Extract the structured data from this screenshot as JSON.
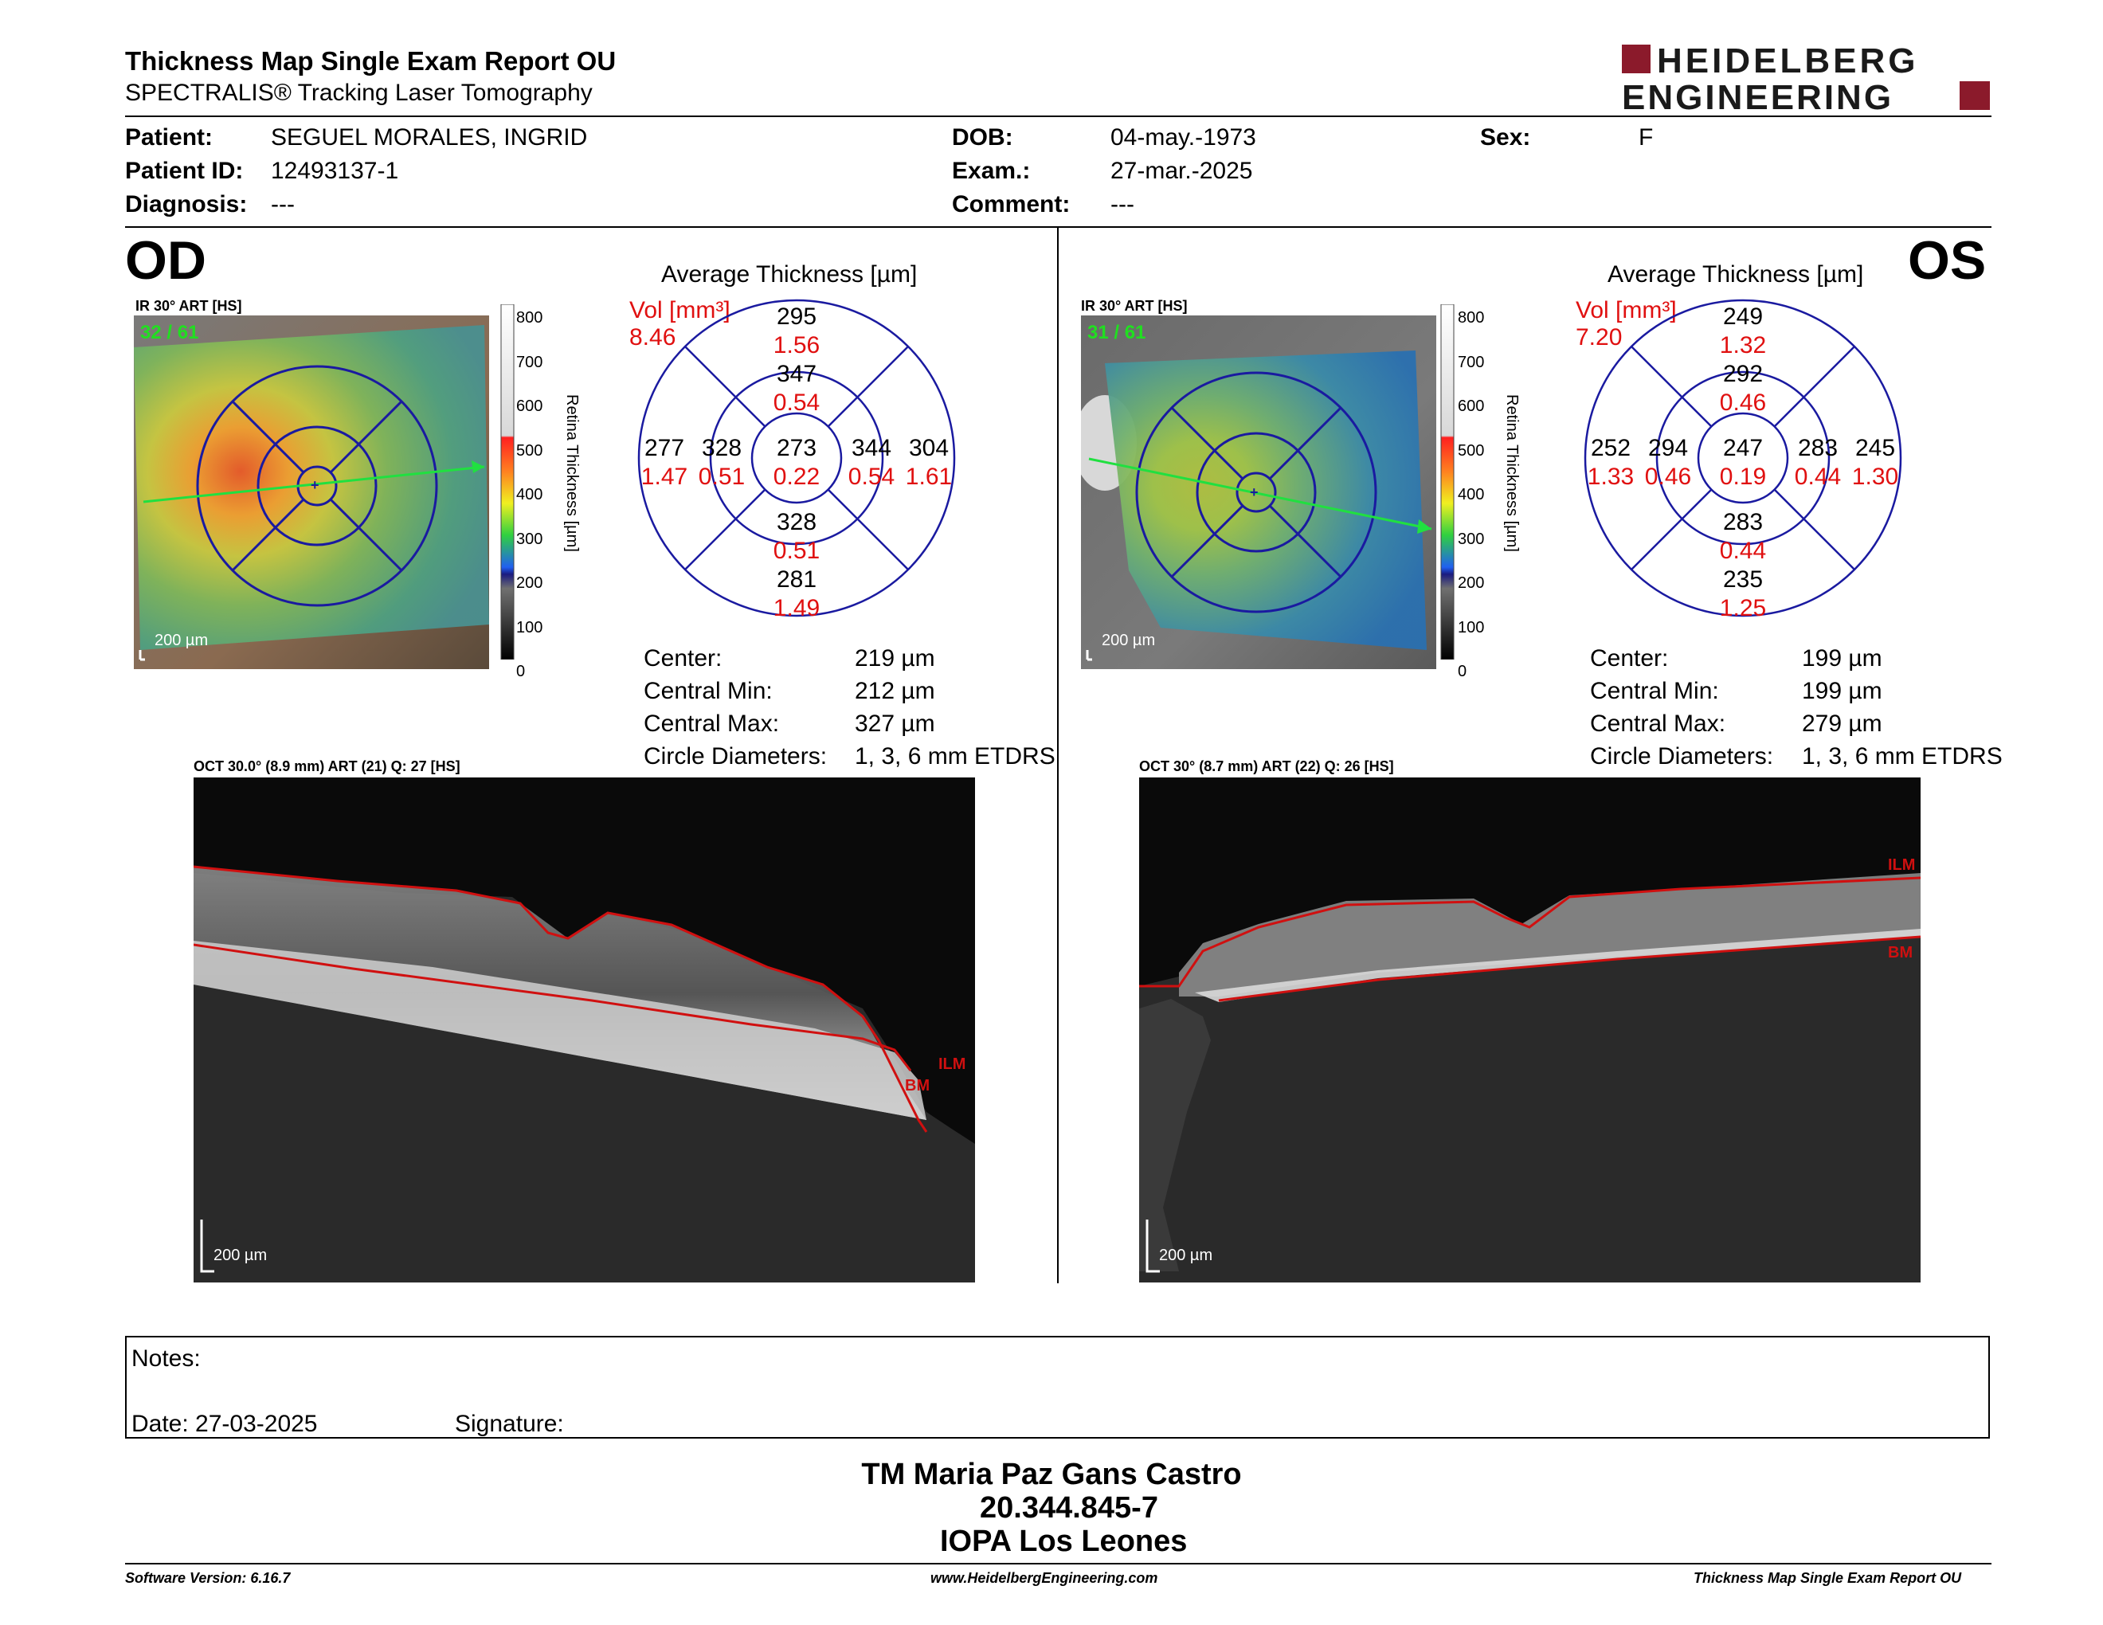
{
  "header": {
    "title": "Thickness Map Single Exam Report OU",
    "subtitle": "SPECTRALIS® Tracking Laser Tomography",
    "logo_line1": "HEIDELBERG",
    "logo_line2": "ENGINEERING",
    "logo_color": "#8b1a2b"
  },
  "patient": {
    "patient_label": "Patient:",
    "patient_value": "SEGUEL MORALES, INGRID",
    "id_label": "Patient ID:",
    "id_value": "12493137-1",
    "diagnosis_label": "Diagnosis:",
    "diagnosis_value": "---",
    "dob_label": "DOB:",
    "dob_value": "04-may.-1973",
    "exam_label": "Exam.:",
    "exam_value": "27-mar.-2025",
    "comment_label": "Comment:",
    "comment_value": "---",
    "sex_label": "Sex:",
    "sex_value": "F"
  },
  "od": {
    "eye": "OD",
    "ir_label": "IR 30° ART [HS]",
    "frames": "32 / 61",
    "scale_label": "200 µm",
    "colorbar_ticks": [
      "800",
      "700",
      "600",
      "500",
      "400",
      "300",
      "200",
      "100",
      "0"
    ],
    "colorbar_title": "Retina  Thickness [µm]",
    "avg_title": "Average Thickness [µm]",
    "vol_label": "Vol [mm³]",
    "vol_value": "8.46",
    "sectors": {
      "center_t": "273",
      "center_v": "0.22",
      "inner_sup_t": "347",
      "inner_sup_v": "0.54",
      "inner_inf_t": "328",
      "inner_inf_v": "0.51",
      "inner_left_t": "328",
      "inner_left_v": "0.51",
      "inner_right_t": "344",
      "inner_right_v": "0.54",
      "outer_sup_t": "295",
      "outer_sup_v": "1.56",
      "outer_inf_t": "281",
      "outer_inf_v": "1.49",
      "outer_left_t": "277",
      "outer_left_v": "1.47",
      "outer_right_t": "304",
      "outer_right_v": "1.61"
    },
    "stats": {
      "center_label": "Center:",
      "center_value": "219 µm",
      "min_label": "Central Min:",
      "min_value": "212 µm",
      "max_label": "Central Max:",
      "max_value": "327 µm",
      "diam_label": "Circle Diameters:",
      "diam_value": "1, 3, 6 mm ETDRS"
    },
    "oct_label": "OCT 30.0° (8.9 mm) ART (21) Q: 27 [HS]",
    "oct_scale": "200 µm",
    "ilm": "ILM",
    "bm": "BM"
  },
  "os": {
    "eye": "OS",
    "ir_label": "IR 30° ART [HS]",
    "frames": "31 / 61",
    "scale_label": "200 µm",
    "colorbar_ticks": [
      "800",
      "700",
      "600",
      "500",
      "400",
      "300",
      "200",
      "100",
      "0"
    ],
    "colorbar_title": "Retina  Thickness [µm]",
    "avg_title": "Average Thickness [µm]",
    "vol_label": "Vol [mm³]",
    "vol_value": "7.20",
    "sectors": {
      "center_t": "247",
      "center_v": "0.19",
      "inner_sup_t": "292",
      "inner_sup_v": "0.46",
      "inner_inf_t": "283",
      "inner_inf_v": "0.44",
      "inner_left_t": "294",
      "inner_left_v": "0.46",
      "inner_right_t": "283",
      "inner_right_v": "0.44",
      "outer_sup_t": "249",
      "outer_sup_v": "1.32",
      "outer_inf_t": "235",
      "outer_inf_v": "1.25",
      "outer_left_t": "252",
      "outer_left_v": "1.33",
      "outer_right_t": "245",
      "outer_right_v": "1.30"
    },
    "stats": {
      "center_label": "Center:",
      "center_value": "199 µm",
      "min_label": "Central Min:",
      "min_value": "199 µm",
      "max_label": "Central Max:",
      "max_value": "279 µm",
      "diam_label": "Circle Diameters:",
      "diam_value": "1, 3, 6 mm ETDRS"
    },
    "oct_label": "OCT 30° (8.7 mm) ART (22) Q: 26 [HS]",
    "oct_scale": "200 µm",
    "ilm": "ILM",
    "bm": "BM"
  },
  "notes": {
    "notes_label": "Notes:",
    "date_label": "Date: 27-03-2025",
    "signature_label": "Signature:"
  },
  "signature_block": {
    "name": "TM Maria Paz Gans Castro",
    "rut": "20.344.845-7",
    "institution": "IOPA Los Leones"
  },
  "footer": {
    "software": "Software Version: 6.16.7",
    "website": "www.HeidelbergEngineering.com",
    "report": "Thickness Map Single Exam Report OU"
  },
  "colors": {
    "vol_red": "#e01010",
    "grid_blue": "#1a1aa0",
    "ilm_red": "#d01010"
  }
}
